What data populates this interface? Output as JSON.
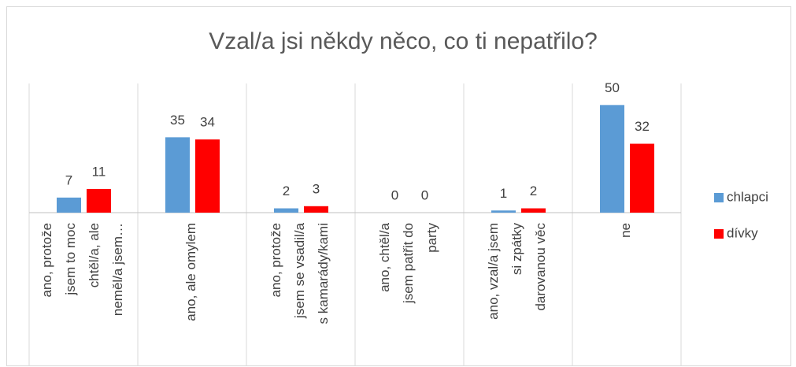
{
  "chart_data": {
    "type": "bar",
    "title": "Vzal/a jsi někdy něco, co ti nepatřilo?",
    "categories": [
      "ano, protože jsem to moc chtěl/a, ale neměl/a jsem…",
      "ano, ale omylem",
      "ano, protože jsem se vsadil/a s kamarády/kami",
      "ano, chtěl/a jsem patřit do party",
      "ano, vzal/a jsem si zpátky darovanou věc",
      "ne"
    ],
    "series": [
      {
        "name": "chlapci",
        "color": "#5b9bd5",
        "values": [
          7,
          35,
          2,
          0,
          1,
          50
        ]
      },
      {
        "name": "dívky",
        "color": "#ff0000",
        "values": [
          11,
          34,
          3,
          0,
          2,
          32
        ]
      }
    ],
    "ylim": [
      0,
      60
    ],
    "legend": "right"
  }
}
